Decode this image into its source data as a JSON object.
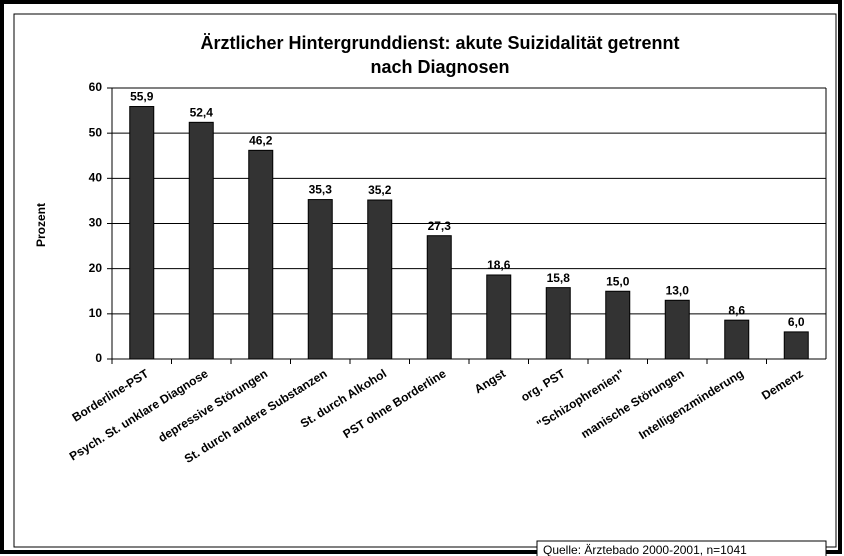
{
  "chart_data": {
    "type": "bar",
    "title": [
      "Ärztlicher Hintergrunddienst: akute Suizidalität getrennt",
      "nach Diagnosen"
    ],
    "y_label": "Prozent",
    "categories": [
      "Borderline-PST",
      "Psych. St. unklare Diagnose",
      "depressive Störungen",
      "St. durch andere Substanzen",
      "St. durch Alkohol",
      "PST ohne Borderline",
      "Angst",
      "org. PST",
      "\"Schizophrenien\"",
      "manische Störungen",
      "Intelligenzminderung",
      "Demenz"
    ],
    "values": [
      55.9,
      52.4,
      46.2,
      35.3,
      35.2,
      27.3,
      18.6,
      15.8,
      15.0,
      13.0,
      8.6,
      6.0
    ],
    "value_labels": [
      "55,9",
      "52,4",
      "46,2",
      "35,3",
      "35,2",
      "27,3",
      "18,6",
      "15,8",
      "15,0",
      "13,0",
      "8,6",
      "6,0"
    ],
    "color": "#333333",
    "ylim": [
      0,
      60
    ],
    "yticks": [
      0,
      10,
      20,
      30,
      40,
      50,
      60
    ],
    "grid": true,
    "source": "Quelle: Ärztebado 2000-2001, n=1041"
  }
}
